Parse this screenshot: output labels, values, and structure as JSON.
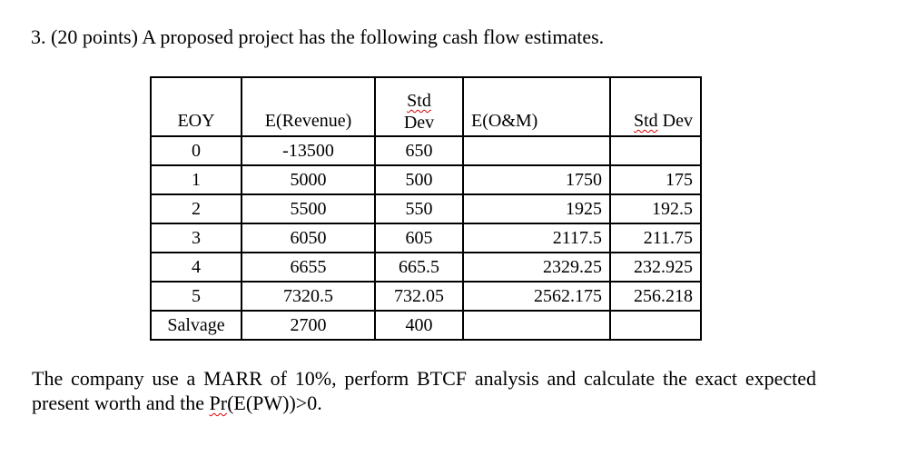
{
  "title": "3. (20 points) A proposed project has the following cash flow estimates.",
  "table": {
    "headers": {
      "eoy": "EOY",
      "rev": "E(Revenue)",
      "sd1_a": "Std",
      "sd1_b": "Dev",
      "om": "E(O&M)",
      "sd2_a": "Std",
      "sd2_b": " Dev"
    },
    "rows": [
      [
        "0",
        "-13500",
        "650",
        "",
        ""
      ],
      [
        "1",
        "5000",
        "500",
        "1750",
        "175"
      ],
      [
        "2",
        "5500",
        "550",
        "1925",
        "192.5"
      ],
      [
        "3",
        "6050",
        "605",
        "2117.5",
        "211.75"
      ],
      [
        "4",
        "6655",
        "665.5",
        "2329.25",
        "232.925"
      ],
      [
        "5",
        "7320.5",
        "732.05",
        "2562.175",
        "256.218"
      ],
      [
        "Salvage",
        "2700",
        "400",
        "",
        ""
      ]
    ]
  },
  "paragraph": {
    "text": "The company use a MARR of 10%, perform BTCF analysis and calculate the exact expected present worth and the ",
    "pr": "Pr",
    "tail": "(E(PW))>0."
  }
}
